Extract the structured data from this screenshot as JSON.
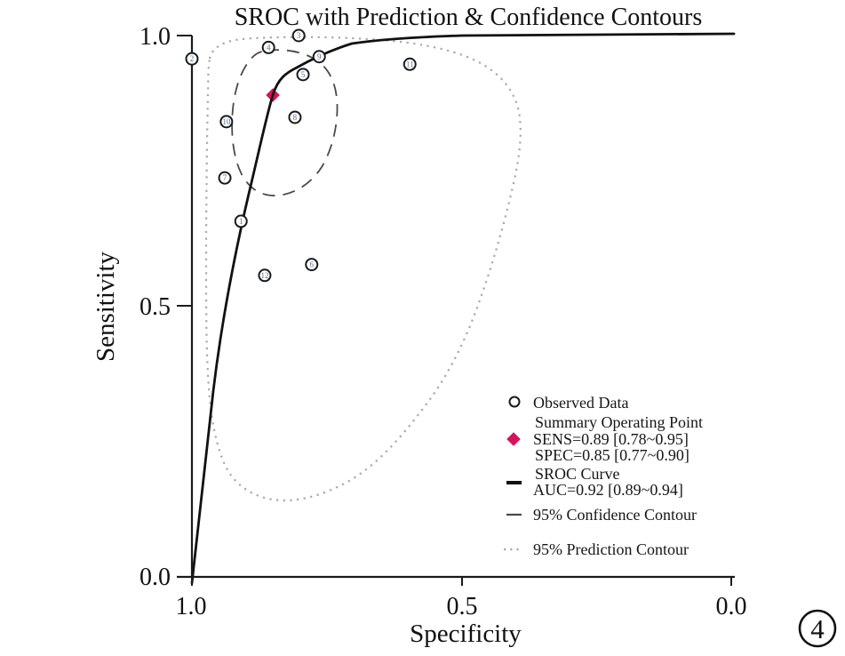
{
  "figure": {
    "title": "SROC with Prediction & Confidence Contours",
    "figure_number": "4"
  },
  "axes": {
    "x": {
      "label": "Specificity",
      "ticks": [
        "1.0",
        "0.5",
        "0.0"
      ]
    },
    "y": {
      "label": "Sensitivity",
      "ticks": [
        "1.0",
        "0.5",
        "0.0"
      ]
    }
  },
  "legend": {
    "observed": "Observed Data",
    "summary_line1": "Summary Operating Point",
    "summary_line2": "SENS=0.89 [0.78~0.95]",
    "summary_line3": "SPEC=0.85 [0.77~0.90]",
    "sroc_line1": "SROC Curve",
    "sroc_line2": "AUC=0.92 [0.89~0.94]",
    "confidence": "95% Confidence Contour",
    "prediction": "95% Prediction Contour"
  },
  "colors": {
    "summary_point": "#d4145a",
    "sroc_curve": "#111111",
    "confidence_contour": "#4a4a4a",
    "prediction_contour": "#a8a8a8",
    "point_number": "#4d7391"
  },
  "chart_data": {
    "type": "scatter",
    "title": "SROC with Prediction & Confidence Contours",
    "xlabel": "Specificity",
    "ylabel": "Sensitivity",
    "x_axis": {
      "ticks": [
        1.0,
        0.5,
        0.0
      ],
      "reversed": true,
      "range": [
        1.0,
        0.0
      ]
    },
    "y_axis": {
      "ticks": [
        0.0,
        0.5,
        1.0
      ],
      "range": [
        0.0,
        1.0
      ]
    },
    "points": [
      {
        "study": 1,
        "specificity": 0.909,
        "sensitivity": 0.657
      },
      {
        "study": 2,
        "specificity": 1.0,
        "sensitivity": 0.957
      },
      {
        "study": 3,
        "specificity": 0.802,
        "sensitivity": 1.0
      },
      {
        "study": 4,
        "specificity": 0.858,
        "sensitivity": 0.978
      },
      {
        "study": 5,
        "specificity": 0.794,
        "sensitivity": 0.928
      },
      {
        "study": 6,
        "specificity": 0.778,
        "sensitivity": 0.577
      },
      {
        "study": 7,
        "specificity": 0.939,
        "sensitivity": 0.737
      },
      {
        "study": 8,
        "specificity": 0.809,
        "sensitivity": 0.849
      },
      {
        "study": 9,
        "specificity": 0.764,
        "sensitivity": 0.961
      },
      {
        "study": 10,
        "specificity": 0.936,
        "sensitivity": 0.841
      },
      {
        "study": 11,
        "specificity": 0.596,
        "sensitivity": 0.947
      },
      {
        "study": 12,
        "specificity": 0.865,
        "sensitivity": 0.557
      }
    ],
    "summary_point": {
      "sensitivity": 0.89,
      "sensitivity_ci": [
        0.78,
        0.95
      ],
      "specificity": 0.85,
      "specificity_ci": [
        0.77,
        0.9
      ]
    },
    "auc": {
      "value": 0.92,
      "ci": [
        0.89,
        0.94
      ]
    },
    "curves": [
      "SROC Curve",
      "95% Confidence Contour",
      "95% Prediction Contour"
    ],
    "legend_position": "lower-right-inside"
  }
}
